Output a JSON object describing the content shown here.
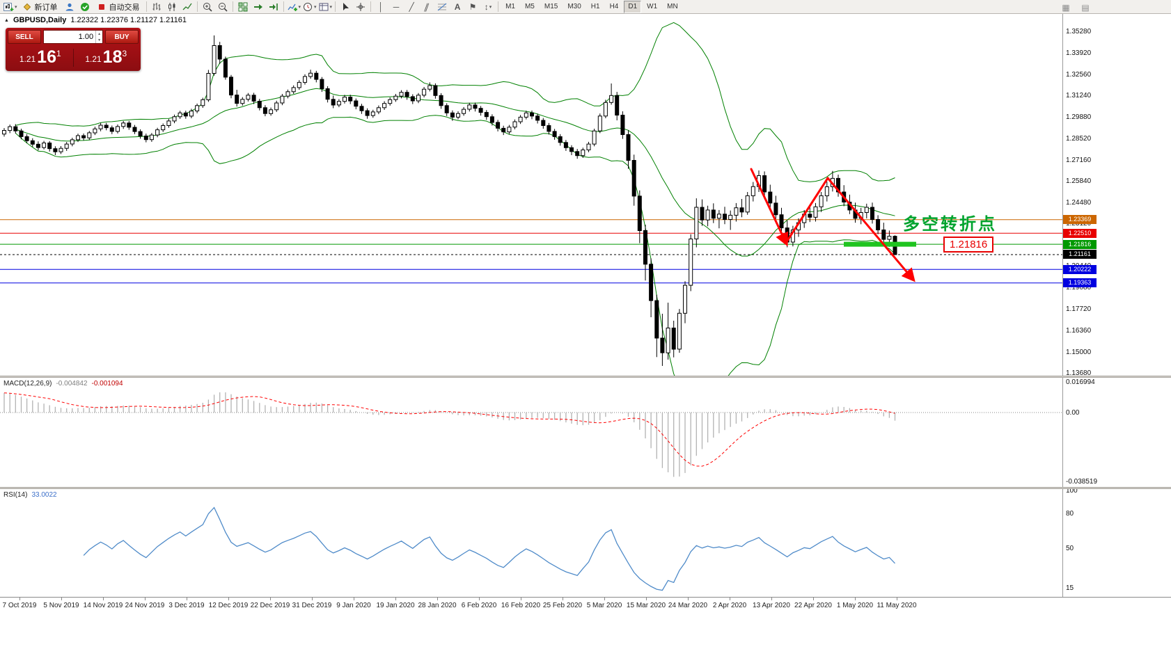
{
  "toolbar": {
    "new_order_label": "新订单",
    "autotrading_label": "自动交易",
    "timeframes": [
      "M1",
      "M5",
      "M15",
      "M30",
      "H1",
      "H4",
      "D1",
      "W1",
      "MN"
    ],
    "active_timeframe": "D1",
    "icon_names": [
      "new-chart-icon",
      "dropdown-icon",
      "new-order-icon",
      "profile-icon",
      "mql-community-icon",
      "autotrading-icon",
      "bar-chart-icon",
      "candlestick-chart-icon",
      "line-chart-icon",
      "zoom-in-icon",
      "zoom-out-icon",
      "tile-windows-icon",
      "auto-scroll-icon",
      "chart-shift-icon",
      "indicators-icon",
      "periods-icon",
      "templates-icon",
      "cursor-icon",
      "crosshair-icon",
      "vertical-line-icon",
      "horizontal-line-icon",
      "trendline-icon",
      "channel-icon",
      "fibonacci-icon",
      "text-icon",
      "label-icon",
      "arrows-icon",
      "toolbar-extra-icon"
    ]
  },
  "header": {
    "symbol_title": "GBPUSD,Daily",
    "ohlc_text": "1.22322 1.22376 1.21127 1.21161"
  },
  "one_click": {
    "sell_label": "SELL",
    "buy_label": "BUY",
    "volume": "1.00",
    "bid": {
      "prefix": "1.21",
      "big": "16",
      "sup": "1"
    },
    "ask": {
      "prefix": "1.21",
      "big": "18",
      "sup": "3"
    }
  },
  "indicator_labels": {
    "macd_name": "MACD(12,26,9)",
    "macd_main": "-0.004842",
    "macd_signal": "-0.001094",
    "rsi_name": "RSI(14)",
    "rsi_value": "33.0022"
  },
  "annotations": {
    "turning_point": "多空转折点",
    "price_callout": "1.21816"
  },
  "colors": {
    "bands": "#008000",
    "bull": "#ffffff",
    "bear": "#000000",
    "macd_hist": "#b2b2b2",
    "macd_signal": "#ff0000",
    "rsi": "#4f8bc9",
    "arrow": "#ff0000",
    "highlight": "#1fc41f",
    "turning_point": "#00a32e",
    "callout": "#e80000"
  },
  "chart_data": {
    "type": "candlestick",
    "symbol": "GBPUSD",
    "timeframe": "Daily",
    "last_ohlc": {
      "open": "1.22322",
      "high": "1.22376",
      "low": "1.21127",
      "close": "1.21161"
    },
    "y_axis_labels": [
      "1.35280",
      "1.33920",
      "1.32560",
      "1.31240",
      "1.29880",
      "1.28520",
      "1.27160",
      "1.25840",
      "1.24480",
      "1.23120",
      "1.21800",
      "1.20440",
      "1.19080",
      "1.17720",
      "1.16360",
      "1.15000",
      "1.13680"
    ],
    "x_axis_labels": [
      "7 Oct 2019",
      "5 Nov 2019",
      "14 Nov 2019",
      "24 Nov 2019",
      "3 Dec 2019",
      "12 Dec 2019",
      "22 Dec 2019",
      "31 Dec 2019",
      "9 Jan 2020",
      "19 Jan 2020",
      "28 Jan 2020",
      "6 Feb 2020",
      "16 Feb 2020",
      "25 Feb 2020",
      "5 Mar 2020",
      "15 Mar 2020",
      "24 Mar 2020",
      "2 Apr 2020",
      "13 Apr 2020",
      "22 Apr 2020",
      "1 May 2020",
      "11 May 2020"
    ],
    "horizontal_levels": [
      {
        "price": 1.23369,
        "color": "#cc6600"
      },
      {
        "price": 1.2251,
        "color": "#e80000"
      },
      {
        "price": 1.21816,
        "color": "#009900"
      },
      {
        "price": 1.21161,
        "color": "#000000",
        "style": "dashed"
      },
      {
        "price": 1.20222,
        "color": "#0000e0"
      },
      {
        "price": 1.19363,
        "color": "#0000e0"
      }
    ],
    "macd_axis_labels": [
      "0.016994",
      "0.00",
      "-0.038519"
    ],
    "rsi_axis_labels": [
      "100",
      "80",
      "50",
      "15"
    ],
    "indicators": {
      "bollinger": {
        "period": 20,
        "deviation": 2
      },
      "macd": {
        "fast": 12,
        "slow": 26,
        "signal": 9
      },
      "rsi": {
        "period": 14
      }
    },
    "candles": [
      [
        1.2878,
        1.2916,
        1.2862,
        1.2901
      ],
      [
        1.2901,
        1.2938,
        1.2884,
        1.2925
      ],
      [
        1.2925,
        1.2941,
        1.2882,
        1.2898
      ],
      [
        1.2898,
        1.2912,
        1.2845,
        1.2862
      ],
      [
        1.2862,
        1.2878,
        1.2821,
        1.2836
      ],
      [
        1.2836,
        1.2852,
        1.2798,
        1.2814
      ],
      [
        1.2814,
        1.2832,
        1.2775,
        1.2793
      ],
      [
        1.2793,
        1.2835,
        1.2781,
        1.2822
      ],
      [
        1.2822,
        1.2834,
        1.2768,
        1.2786
      ],
      [
        1.2786,
        1.2801,
        1.2745,
        1.2766
      ],
      [
        1.2766,
        1.2802,
        1.2752,
        1.2788
      ],
      [
        1.2788,
        1.2828,
        1.2772,
        1.2815
      ],
      [
        1.2815,
        1.2855,
        1.2801,
        1.2842
      ],
      [
        1.2842,
        1.2881,
        1.2828,
        1.2868
      ],
      [
        1.2868,
        1.2882,
        1.2838,
        1.2854
      ],
      [
        1.2854,
        1.2898,
        1.2841,
        1.2886
      ],
      [
        1.2886,
        1.2925,
        1.2872,
        1.2911
      ],
      [
        1.2911,
        1.2948,
        1.2896,
        1.2934
      ],
      [
        1.2934,
        1.2949,
        1.2902,
        1.2918
      ],
      [
        1.2918,
        1.2932,
        1.2878,
        1.2895
      ],
      [
        1.2895,
        1.2939,
        1.2882,
        1.2926
      ],
      [
        1.2926,
        1.2961,
        1.2911,
        1.2948
      ],
      [
        1.2948,
        1.2962,
        1.2905,
        1.2921
      ],
      [
        1.2921,
        1.2936,
        1.2878,
        1.2894
      ],
      [
        1.2894,
        1.2908,
        1.2849,
        1.2866
      ],
      [
        1.2866,
        1.2881,
        1.2826,
        1.2843
      ],
      [
        1.2843,
        1.2885,
        1.2829,
        1.2872
      ],
      [
        1.2872,
        1.2918,
        1.2858,
        1.2905
      ],
      [
        1.2905,
        1.2945,
        1.2891,
        1.2932
      ],
      [
        1.2932,
        1.2974,
        1.2918,
        1.2961
      ],
      [
        1.2961,
        1.3001,
        1.2947,
        1.2988
      ],
      [
        1.2988,
        1.3025,
        1.2974,
        1.3012
      ],
      [
        1.3012,
        1.3026,
        1.2975,
        1.2992
      ],
      [
        1.2992,
        1.3038,
        1.2978,
        1.3024
      ],
      [
        1.3024,
        1.3071,
        1.301,
        1.3058
      ],
      [
        1.3058,
        1.3108,
        1.3044,
        1.3095
      ],
      [
        1.3095,
        1.3284,
        1.3082,
        1.3262
      ],
      [
        1.3262,
        1.3502,
        1.3248,
        1.3438
      ],
      [
        1.3438,
        1.3461,
        1.3322,
        1.3352
      ],
      [
        1.3352,
        1.3368,
        1.3222,
        1.3238
      ],
      [
        1.3238,
        1.3252,
        1.3105,
        1.3125
      ],
      [
        1.3125,
        1.3158,
        1.3052,
        1.3072
      ],
      [
        1.3072,
        1.3112,
        1.3058,
        1.3098
      ],
      [
        1.3098,
        1.3138,
        1.3084,
        1.3124
      ],
      [
        1.3124,
        1.3139,
        1.3068,
        1.3086
      ],
      [
        1.3086,
        1.3101,
        1.3028,
        1.3045
      ],
      [
        1.3045,
        1.3061,
        1.2991,
        1.3008
      ],
      [
        1.3008,
        1.3046,
        1.2994,
        1.3032
      ],
      [
        1.3032,
        1.3089,
        1.3018,
        1.3075
      ],
      [
        1.3075,
        1.3132,
        1.3061,
        1.3118
      ],
      [
        1.3118,
        1.316,
        1.3104,
        1.3146
      ],
      [
        1.3146,
        1.3186,
        1.3132,
        1.3172
      ],
      [
        1.3172,
        1.3219,
        1.3158,
        1.3205
      ],
      [
        1.3205,
        1.3256,
        1.3191,
        1.3242
      ],
      [
        1.3242,
        1.3285,
        1.3228,
        1.3263
      ],
      [
        1.3263,
        1.3278,
        1.3205,
        1.3224
      ],
      [
        1.3224,
        1.3239,
        1.3145,
        1.3165
      ],
      [
        1.3165,
        1.3181,
        1.3078,
        1.3098
      ],
      [
        1.3098,
        1.3122,
        1.3042,
        1.3062
      ],
      [
        1.3062,
        1.3099,
        1.3048,
        1.3085
      ],
      [
        1.3085,
        1.3126,
        1.3071,
        1.3112
      ],
      [
        1.3112,
        1.3127,
        1.3068,
        1.3088
      ],
      [
        1.3088,
        1.3103,
        1.3035,
        1.3054
      ],
      [
        1.3054,
        1.3069,
        1.3006,
        1.3026
      ],
      [
        1.3026,
        1.3041,
        1.2975,
        1.2995
      ],
      [
        1.2995,
        1.3032,
        1.2981,
        1.3018
      ],
      [
        1.3018,
        1.3059,
        1.3004,
        1.3045
      ],
      [
        1.3045,
        1.3086,
        1.3031,
        1.3072
      ],
      [
        1.3072,
        1.311,
        1.3058,
        1.3096
      ],
      [
        1.3096,
        1.3132,
        1.3082,
        1.3118
      ],
      [
        1.3118,
        1.3156,
        1.3104,
        1.3142
      ],
      [
        1.3142,
        1.3157,
        1.3095,
        1.3115
      ],
      [
        1.3115,
        1.313,
        1.3068,
        1.3088
      ],
      [
        1.3088,
        1.3138,
        1.3074,
        1.3124
      ],
      [
        1.3124,
        1.3176,
        1.311,
        1.3162
      ],
      [
        1.3162,
        1.3205,
        1.3148,
        1.3185
      ],
      [
        1.3185,
        1.3199,
        1.3102,
        1.3122
      ],
      [
        1.3122,
        1.3137,
        1.3038,
        1.3058
      ],
      [
        1.3058,
        1.3073,
        1.2992,
        1.3012
      ],
      [
        1.3012,
        1.3028,
        1.2962,
        1.2985
      ],
      [
        1.2985,
        1.3022,
        1.2971,
        1.3008
      ],
      [
        1.3008,
        1.3049,
        1.2994,
        1.3035
      ],
      [
        1.3035,
        1.3076,
        1.3021,
        1.3062
      ],
      [
        1.3062,
        1.3077,
        1.3021,
        1.3041
      ],
      [
        1.3041,
        1.3056,
        1.2995,
        1.3015
      ],
      [
        1.3015,
        1.303,
        1.2968,
        1.2988
      ],
      [
        1.2988,
        1.3003,
        1.2932,
        1.2952
      ],
      [
        1.2952,
        1.2968,
        1.2895,
        1.2915
      ],
      [
        1.2915,
        1.2931,
        1.2872,
        1.2892
      ],
      [
        1.2892,
        1.2936,
        1.2878,
        1.2922
      ],
      [
        1.2922,
        1.297,
        1.2908,
        1.2956
      ],
      [
        1.2956,
        1.2999,
        1.2942,
        1.2985
      ],
      [
        1.2985,
        1.3026,
        1.2971,
        1.3012
      ],
      [
        1.3012,
        1.3027,
        1.2972,
        1.2992
      ],
      [
        1.2992,
        1.3007,
        1.2945,
        1.2965
      ],
      [
        1.2965,
        1.298,
        1.2912,
        1.2932
      ],
      [
        1.2932,
        1.2948,
        1.2875,
        1.2895
      ],
      [
        1.2895,
        1.2911,
        1.2842,
        1.2862
      ],
      [
        1.2862,
        1.2878,
        1.2805,
        1.2825
      ],
      [
        1.2825,
        1.2841,
        1.2772,
        1.2792
      ],
      [
        1.2792,
        1.2808,
        1.2745,
        1.2768
      ],
      [
        1.2768,
        1.2784,
        1.2722,
        1.2742
      ],
      [
        1.2742,
        1.2792,
        1.2728,
        1.2778
      ],
      [
        1.2778,
        1.2829,
        1.2764,
        1.2815
      ],
      [
        1.2815,
        1.2912,
        1.2801,
        1.2898
      ],
      [
        1.2898,
        1.3008,
        1.2884,
        1.2992
      ],
      [
        1.2992,
        1.3095,
        1.2978,
        1.3078
      ],
      [
        1.3078,
        1.3198,
        1.3064,
        1.3122
      ],
      [
        1.3122,
        1.3145,
        1.2965,
        1.2998
      ],
      [
        1.2998,
        1.3022,
        1.2848,
        1.2875
      ],
      [
        1.2875,
        1.2902,
        1.2658,
        1.2712
      ],
      [
        1.2712,
        1.2748,
        1.2425,
        1.2486
      ],
      [
        1.2486,
        1.2522,
        1.2188,
        1.2268
      ],
      [
        1.2268,
        1.2305,
        1.1952,
        1.2055
      ],
      [
        1.2055,
        1.2092,
        1.172,
        1.1825
      ],
      [
        1.1825,
        1.1862,
        1.1468,
        1.1588
      ],
      [
        1.1588,
        1.1742,
        1.1412,
        1.1495
      ],
      [
        1.1495,
        1.1812,
        1.1452,
        1.1652
      ],
      [
        1.1652,
        1.1698,
        1.1466,
        1.1518
      ],
      [
        1.1518,
        1.1772,
        1.1495,
        1.1745
      ],
      [
        1.1745,
        1.1948,
        1.1682,
        1.1922
      ],
      [
        1.1922,
        1.2245,
        1.1885,
        1.2215
      ],
      [
        1.2215,
        1.2472,
        1.2162,
        1.2415
      ],
      [
        1.2415,
        1.2465,
        1.2298,
        1.2335
      ],
      [
        1.2335,
        1.2425,
        1.2295,
        1.2398
      ],
      [
        1.2398,
        1.244,
        1.2315,
        1.2346
      ],
      [
        1.2346,
        1.2398,
        1.2282,
        1.2372
      ],
      [
        1.2372,
        1.2418,
        1.2308,
        1.2338
      ],
      [
        1.2338,
        1.2395,
        1.2272,
        1.2365
      ],
      [
        1.2365,
        1.2442,
        1.2325,
        1.2412
      ],
      [
        1.2412,
        1.2468,
        1.2352,
        1.2385
      ],
      [
        1.2385,
        1.2512,
        1.2368,
        1.2488
      ],
      [
        1.2488,
        1.2575,
        1.2452,
        1.2546
      ],
      [
        1.2546,
        1.2648,
        1.2512,
        1.2615
      ],
      [
        1.2615,
        1.2642,
        1.2488,
        1.2512
      ],
      [
        1.2512,
        1.2558,
        1.2412,
        1.2442
      ],
      [
        1.2442,
        1.2488,
        1.2342,
        1.2368
      ],
      [
        1.2368,
        1.2412,
        1.2252,
        1.2285
      ],
      [
        1.2285,
        1.2332,
        1.2162,
        1.2195
      ],
      [
        1.2195,
        1.2298,
        1.2168,
        1.2272
      ],
      [
        1.2272,
        1.2345,
        1.2228,
        1.2318
      ],
      [
        1.2318,
        1.2398,
        1.2285,
        1.2372
      ],
      [
        1.2372,
        1.2425,
        1.2322,
        1.2352
      ],
      [
        1.2352,
        1.2442,
        1.2325,
        1.2418
      ],
      [
        1.2418,
        1.2512,
        1.2385,
        1.2488
      ],
      [
        1.2488,
        1.2578,
        1.2452,
        1.2545
      ],
      [
        1.2545,
        1.2645,
        1.2515,
        1.2598
      ],
      [
        1.2598,
        1.2622,
        1.2482,
        1.2512
      ],
      [
        1.2512,
        1.2555,
        1.2422,
        1.2448
      ],
      [
        1.2448,
        1.2495,
        1.2372,
        1.2398
      ],
      [
        1.2398,
        1.2445,
        1.2318,
        1.2345
      ],
      [
        1.2345,
        1.2412,
        1.2308,
        1.2382
      ],
      [
        1.2382,
        1.2438,
        1.2345,
        1.2415
      ],
      [
        1.2415,
        1.2445,
        1.2312,
        1.2338
      ],
      [
        1.2338,
        1.2365,
        1.2245,
        1.2272
      ],
      [
        1.2272,
        1.2318,
        1.2185,
        1.2212
      ],
      [
        1.2212,
        1.2268,
        1.2165,
        1.2232
      ],
      [
        1.22322,
        1.22376,
        1.21127,
        1.21161
      ]
    ]
  }
}
